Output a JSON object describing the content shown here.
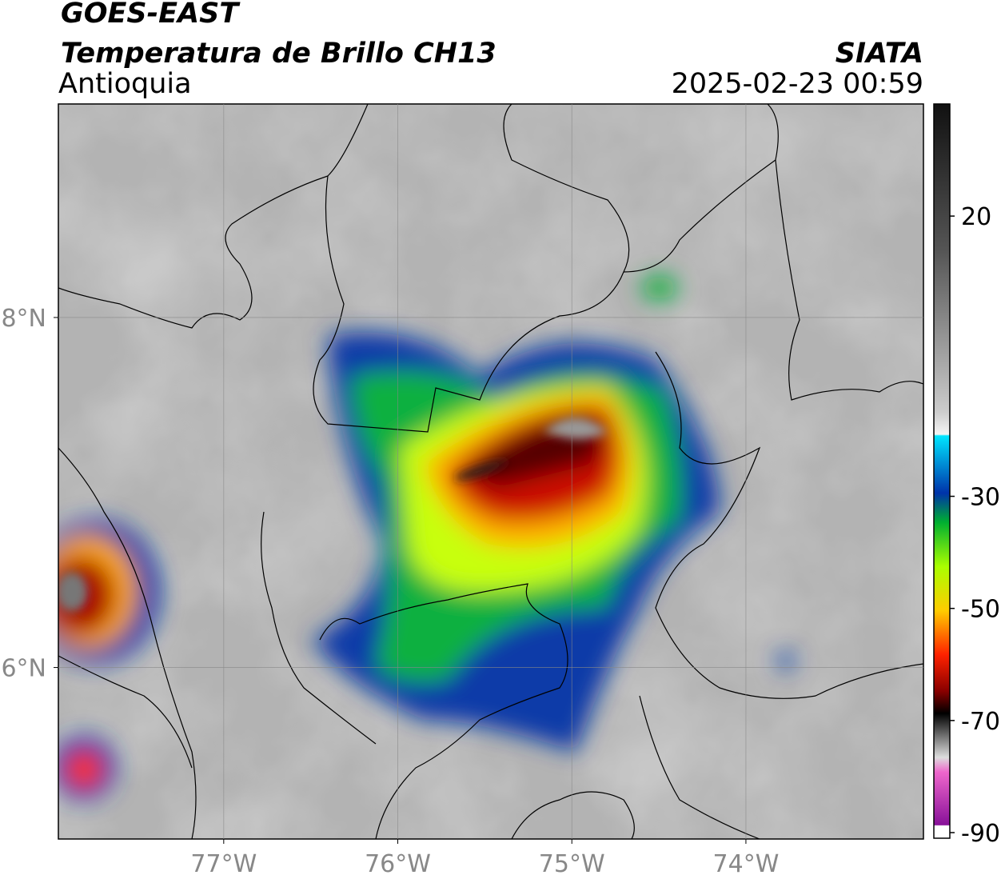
{
  "header": {
    "title": "GOES-EAST",
    "subtitle": "Temperatura de Brillo CH13",
    "region": "Antioquia",
    "source": "SIATA",
    "datetime": "2025-02-23 00:59"
  },
  "map": {
    "xlim": [
      -77.95,
      -72.98
    ],
    "ylim": [
      5.02,
      9.22
    ],
    "xticks": [
      {
        "value": -77,
        "label": "77°W"
      },
      {
        "value": -76,
        "label": "76°W"
      },
      {
        "value": -75,
        "label": "75°W"
      },
      {
        "value": -74,
        "label": "74°W"
      }
    ],
    "yticks": [
      {
        "value": 8,
        "label": "8°N"
      },
      {
        "value": 6,
        "label": "6°N"
      }
    ],
    "grid": true
  },
  "colorbar": {
    "lim": [
      -91,
      40
    ],
    "ticks": [
      20,
      -30,
      -50,
      -70,
      -90
    ]
  }
}
